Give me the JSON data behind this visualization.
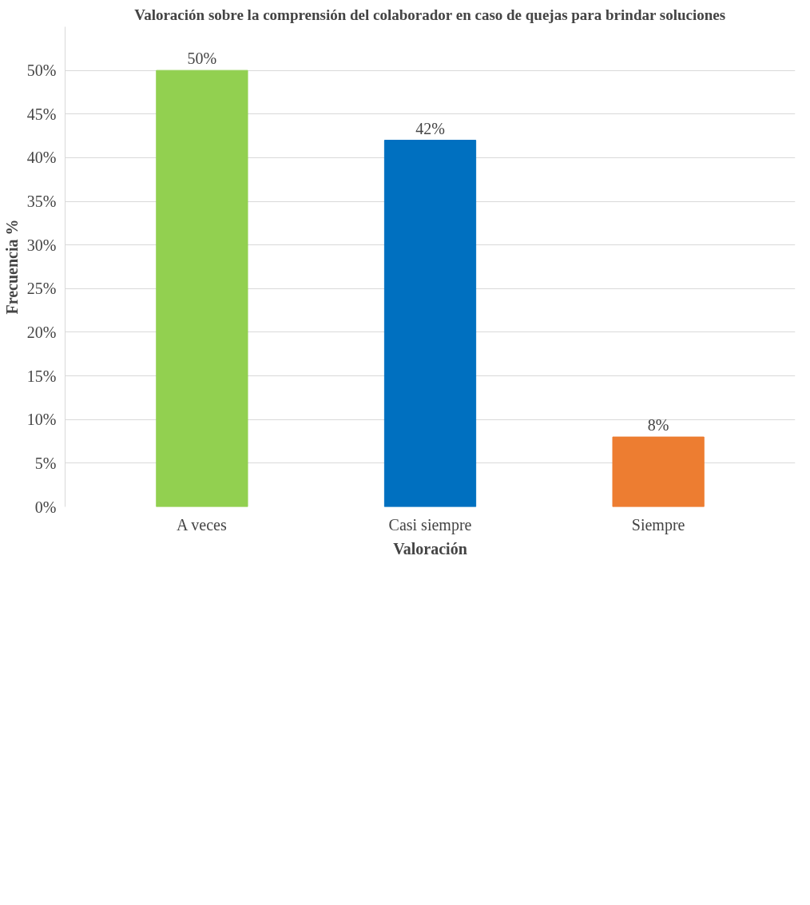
{
  "chart_data": {
    "type": "bar",
    "title": "Valoración sobre la comprensión del colaborador en caso de quejas para brindar soluciones",
    "xlabel": "Valoración",
    "ylabel": "Frecuencia %",
    "categories": [
      "A veces",
      "Casi siempre",
      "Siempre"
    ],
    "values": [
      50,
      42,
      8
    ],
    "colors": [
      "#92d050",
      "#0070c0",
      "#ed7d31"
    ],
    "value_labels": [
      "50%",
      "42%",
      "8%"
    ],
    "ylim": [
      0,
      55
    ],
    "yticks": [
      {
        "value": 0,
        "label": "0%"
      },
      {
        "value": 5,
        "label": "5%"
      },
      {
        "value": 10,
        "label": "10%"
      },
      {
        "value": 15,
        "label": "15%"
      },
      {
        "value": 20,
        "label": "20%"
      },
      {
        "value": 25,
        "label": "25%"
      },
      {
        "value": 30,
        "label": "30%"
      },
      {
        "value": 35,
        "label": "35%"
      },
      {
        "value": 40,
        "label": "40%"
      },
      {
        "value": 45,
        "label": "45%"
      },
      {
        "value": 50,
        "label": "50%"
      }
    ],
    "grid": "y"
  }
}
